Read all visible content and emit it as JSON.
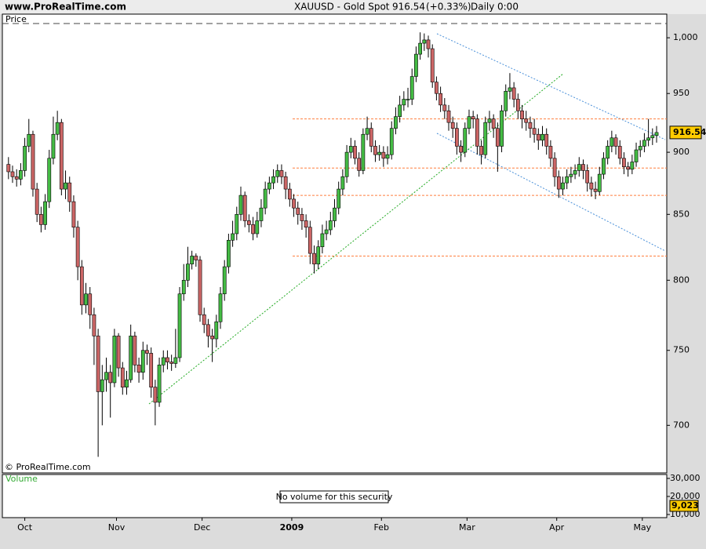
{
  "header": {
    "site": "www.ProRealTime.com",
    "symbol": "XAUUSD - Gold Spot",
    "change": "(+0.33%)",
    "period": "Daily",
    "time": "0:00"
  },
  "chart_data": {
    "type": "candlestick",
    "panel_label": "Price",
    "copyright": "© ProRealTime.com",
    "last_price": 916.54,
    "log_scale": true,
    "ylim": [
      670,
      1022
    ],
    "yticks": [
      700,
      750,
      800,
      850,
      900,
      950,
      {
        "value": 1000,
        "label": "1,000"
      }
    ],
    "xlim": [
      -1.5,
      161.5
    ],
    "xticks": [
      {
        "value": 4,
        "label": "Oct"
      },
      {
        "value": 26.5,
        "label": "Nov"
      },
      {
        "value": 47.5,
        "label": "Dec"
      },
      {
        "value": 69.5,
        "label": "2009"
      },
      {
        "value": 91.5,
        "label": "Feb"
      },
      {
        "value": 112.5,
        "label": "Mar"
      },
      {
        "value": 134.5,
        "label": "Apr"
      },
      {
        "value": 155.5,
        "label": "May"
      }
    ],
    "up_color": "#44bb44",
    "down_color": "#cc6666",
    "level_color": "#ff7f3f",
    "levels": [
      928,
      887,
      865,
      818
    ],
    "open": [
      890,
      884,
      880,
      878,
      885,
      905,
      915,
      870,
      850,
      842,
      860,
      895,
      915,
      925,
      870,
      875,
      860,
      840,
      810,
      782,
      790,
      775,
      760,
      722,
      730,
      735,
      728,
      760,
      738,
      725,
      730,
      760,
      740,
      735,
      750,
      748,
      725,
      715,
      740,
      745,
      742,
      741,
      745,
      790,
      800,
      812,
      818,
      815,
      775,
      768,
      760,
      758,
      770,
      790,
      810,
      830,
      835,
      850,
      865,
      845,
      842,
      835,
      845,
      855,
      870,
      875,
      880,
      885,
      880,
      870,
      862,
      855,
      850,
      845,
      840,
      820,
      812,
      825,
      835,
      838,
      845,
      855,
      870,
      880,
      900,
      905,
      895,
      885,
      915,
      920,
      905,
      898,
      900,
      895,
      898,
      920,
      930,
      940,
      945,
      945,
      965,
      985,
      995,
      998,
      990,
      960,
      950,
      940,
      935,
      925,
      920,
      905,
      900,
      920,
      930,
      928,
      905,
      898,
      925,
      928,
      920,
      905,
      935,
      952,
      955,
      945,
      935,
      928,
      925,
      920,
      915,
      910,
      915,
      905,
      895,
      880,
      870,
      875,
      880,
      882,
      885,
      890,
      885,
      875,
      870,
      868,
      882,
      895,
      905,
      912,
      905,
      895,
      888,
      886,
      892,
      902,
      905,
      910,
      912,
      914
    ],
    "high": [
      896,
      889,
      886,
      891,
      912,
      928,
      918,
      875,
      856,
      866,
      902,
      930,
      935,
      928,
      885,
      880,
      865,
      845,
      815,
      798,
      795,
      780,
      765,
      740,
      745,
      740,
      765,
      762,
      742,
      736,
      768,
      763,
      745,
      756,
      754,
      752,
      730,
      745,
      750,
      750,
      747,
      765,
      795,
      812,
      825,
      822,
      820,
      818,
      780,
      772,
      765,
      775,
      795,
      815,
      835,
      845,
      856,
      872,
      868,
      850,
      848,
      852,
      862,
      876,
      880,
      886,
      890,
      890,
      884,
      875,
      866,
      860,
      855,
      850,
      845,
      826,
      830,
      842,
      845,
      852,
      862,
      876,
      886,
      906,
      912,
      910,
      900,
      920,
      930,
      925,
      910,
      906,
      905,
      905,
      926,
      938,
      948,
      952,
      955,
      972,
      992,
      1005,
      1004,
      1002,
      994,
      965,
      956,
      946,
      940,
      930,
      925,
      910,
      925,
      936,
      935,
      932,
      910,
      930,
      935,
      932,
      925,
      940,
      958,
      968,
      960,
      950,
      940,
      935,
      930,
      928,
      920,
      922,
      920,
      910,
      900,
      885,
      880,
      886,
      888,
      890,
      896,
      894,
      890,
      880,
      876,
      888,
      900,
      910,
      918,
      915,
      910,
      900,
      892,
      898,
      908,
      910,
      916,
      928,
      920,
      922
    ],
    "low": [
      878,
      875,
      872,
      873,
      880,
      900,
      864,
      844,
      836,
      838,
      855,
      890,
      910,
      865,
      862,
      852,
      832,
      800,
      775,
      776,
      765,
      740,
      680,
      700,
      722,
      705,
      725,
      732,
      720,
      720,
      728,
      735,
      728,
      730,
      740,
      718,
      700,
      712,
      735,
      737,
      736,
      738,
      742,
      785,
      795,
      808,
      810,
      770,
      762,
      752,
      742,
      752,
      765,
      785,
      805,
      825,
      830,
      845,
      840,
      836,
      830,
      832,
      840,
      850,
      866,
      870,
      875,
      874,
      862,
      856,
      848,
      842,
      838,
      832,
      812,
      805,
      808,
      820,
      830,
      834,
      840,
      850,
      865,
      875,
      895,
      890,
      880,
      882,
      910,
      900,
      892,
      893,
      888,
      890,
      894,
      915,
      925,
      935,
      938,
      940,
      960,
      980,
      988,
      982,
      955,
      944,
      934,
      928,
      918,
      912,
      898,
      892,
      896,
      915,
      920,
      898,
      890,
      895,
      918,
      912,
      884,
      900,
      930,
      945,
      938,
      928,
      920,
      918,
      912,
      908,
      902,
      905,
      898,
      888,
      872,
      863,
      865,
      870,
      875,
      878,
      880,
      878,
      868,
      864,
      862,
      865,
      878,
      890,
      900,
      898,
      890,
      882,
      880,
      882,
      888,
      896,
      900,
      905,
      906,
      908
    ],
    "close": [
      884,
      880,
      878,
      885,
      905,
      915,
      870,
      850,
      842,
      860,
      895,
      915,
      925,
      870,
      875,
      860,
      840,
      810,
      782,
      790,
      775,
      760,
      722,
      730,
      735,
      728,
      760,
      738,
      725,
      730,
      760,
      740,
      735,
      750,
      748,
      725,
      715,
      740,
      745,
      742,
      741,
      745,
      790,
      800,
      812,
      818,
      815,
      775,
      768,
      760,
      758,
      770,
      790,
      810,
      830,
      835,
      850,
      865,
      845,
      842,
      835,
      845,
      855,
      870,
      875,
      880,
      885,
      880,
      870,
      862,
      855,
      850,
      845,
      840,
      820,
      812,
      825,
      835,
      838,
      845,
      855,
      870,
      880,
      900,
      905,
      895,
      885,
      915,
      920,
      905,
      898,
      900,
      895,
      898,
      920,
      930,
      940,
      945,
      945,
      965,
      985,
      995,
      998,
      990,
      960,
      950,
      940,
      935,
      925,
      920,
      905,
      900,
      920,
      930,
      928,
      905,
      898,
      925,
      928,
      920,
      905,
      935,
      952,
      955,
      945,
      935,
      928,
      925,
      920,
      915,
      910,
      915,
      905,
      895,
      880,
      870,
      875,
      880,
      882,
      885,
      890,
      885,
      875,
      870,
      868,
      882,
      895,
      905,
      912,
      905,
      895,
      888,
      886,
      892,
      902,
      905,
      910,
      912,
      914,
      916.54
    ]
  },
  "volume_panel": {
    "label": "Volume",
    "note": "No volume for this security",
    "ylim": [
      8261,
      32174
    ],
    "yticks": [
      {
        "value": 10000,
        "label": "10,000"
      },
      {
        "value": 20000,
        "label": "20,000"
      },
      {
        "value": 30000,
        "label": "30,000"
      }
    ],
    "last_value": 9023,
    "last_value_label": "9,023"
  }
}
